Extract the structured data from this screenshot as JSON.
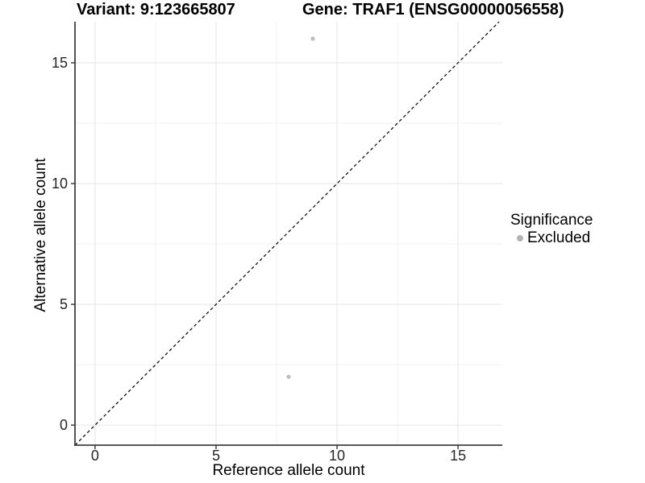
{
  "header": {
    "variant_title": "Variant: 9:123665807",
    "gene_title": "Gene: TRAF1 (ENSG00000056558)"
  },
  "chart_data": {
    "type": "scatter",
    "title": "Variant: 9:123665807    Gene: TRAF1 (ENSG00000056558)",
    "xlabel": "Reference allele count",
    "ylabel": "Alternative allele count",
    "xlim": [
      -0.83,
      16.83
    ],
    "ylim": [
      -0.83,
      16.7
    ],
    "x_ticks": [
      0,
      5,
      10,
      15
    ],
    "y_ticks": [
      0,
      5,
      10,
      15
    ],
    "x_minor_ticks": [
      2.5,
      7.5,
      12.5
    ],
    "y_minor_ticks": [
      2.5,
      7.5,
      12.5
    ],
    "grid": true,
    "series": [
      {
        "name": "Excluded",
        "color": "#bdbdbd",
        "points": [
          {
            "x": 9,
            "y": 16
          },
          {
            "x": 8,
            "y": 2
          }
        ]
      }
    ],
    "reference_line": {
      "type": "identity",
      "style": "dashed",
      "color": "#000000"
    },
    "legend": {
      "title": "Significance",
      "position": "right",
      "items": [
        {
          "label": "Excluded",
          "color": "#b3b3b3"
        }
      ]
    }
  }
}
